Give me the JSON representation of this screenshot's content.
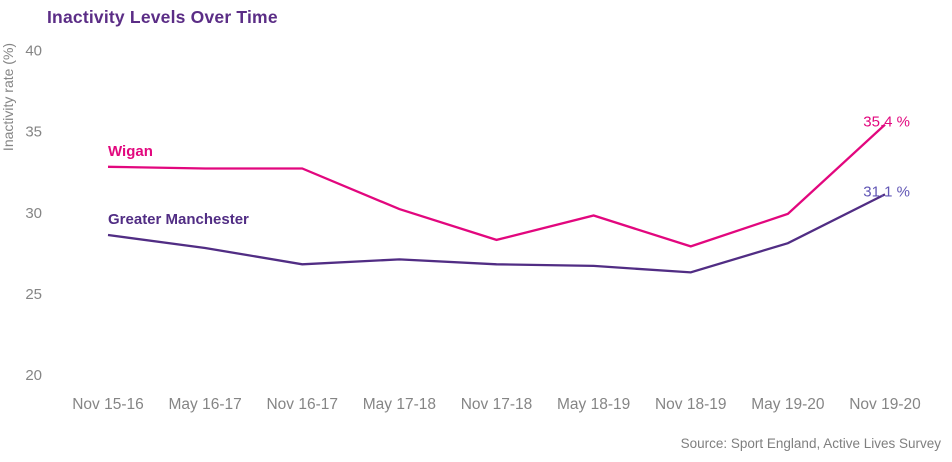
{
  "title": "Inactivity Levels Over Time",
  "source": "Source: Sport England, Active Lives Survey",
  "colors": {
    "title": "#5b2d86",
    "axis_text": "#858585",
    "source_text": "#7f7f7f",
    "wigan_pink": "#e2077e",
    "manchester_purple": "#512d84",
    "manchester_end_label": "#6156b5",
    "background": "#ffffff"
  },
  "y_axis": {
    "label": "Inactivity rate (%)",
    "ticks": [
      "40",
      "35",
      "30",
      "25",
      "20"
    ]
  },
  "chart_data": {
    "type": "line",
    "title": "Inactivity Levels Over Time",
    "xlabel": "",
    "ylabel": "Inactivity rate (%)",
    "ylim": [
      20,
      40
    ],
    "yticks": [
      40,
      35,
      30,
      25,
      20
    ],
    "grid": false,
    "legend_position": "inline-series-labels",
    "categories": [
      "Nov 15-16",
      "May 16-17",
      "Nov 16-17",
      "May 17-18",
      "Nov 17-18",
      "May 18-19",
      "Nov 18-19",
      "May 19-20",
      "Nov 19-20"
    ],
    "series": [
      {
        "name": "Wigan",
        "color": "#e2077e",
        "label_color": "#e2077e",
        "end_label": "35.4 %",
        "end_label_color": "#e2077e",
        "values": [
          32.8,
          32.7,
          32.7,
          30.2,
          28.3,
          29.8,
          27.9,
          29.9,
          35.4
        ]
      },
      {
        "name": "Greater Manchester",
        "color": "#512d84",
        "label_color": "#512d84",
        "end_label": "31.1 %",
        "end_label_color": "#6156b5",
        "values": [
          28.6,
          27.8,
          26.8,
          27.1,
          26.8,
          26.7,
          26.3,
          28.1,
          31.1
        ]
      }
    ],
    "annotation_source": "Source: Sport England, Active Lives Survey"
  }
}
